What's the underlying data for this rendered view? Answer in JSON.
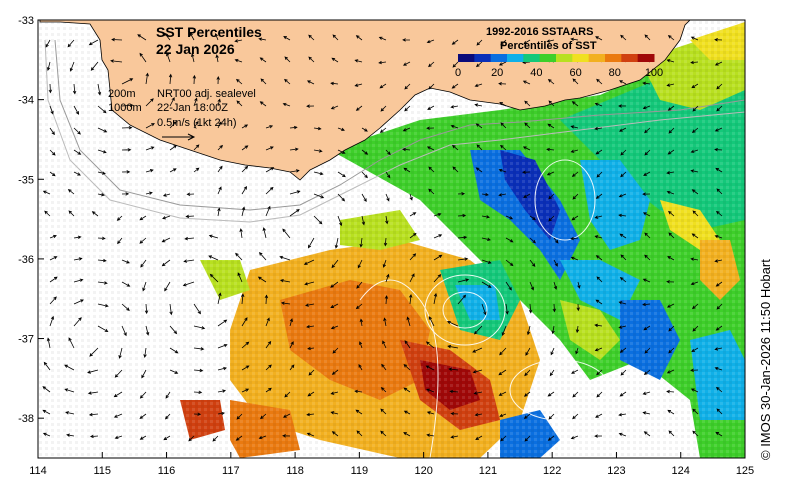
{
  "title": "SST Percentiles",
  "date": "22 Jan 2026",
  "legend": {
    "title1": "1992-2016 SSTAARS",
    "title2": "Percentiles of SST",
    "ticks": [
      "0",
      "20",
      "40",
      "60",
      "80",
      "100"
    ],
    "colors": [
      "#0b0b7a",
      "#0a2fb8",
      "#0a6fe0",
      "#10b0e8",
      "#14c87a",
      "#3ecf2a",
      "#b8e020",
      "#f0e020",
      "#f2b020",
      "#ea7a10",
      "#d04010",
      "#a00808"
    ]
  },
  "contour_info": {
    "line1_depth": "200m",
    "line1_text": "NRT00 adj. sealevel",
    "line2_depth": "1000m",
    "line2_text": "22-Jan 18:00Z",
    "scale_text": "0.5m/s (1kt 24h)"
  },
  "axes": {
    "x_ticks": [
      "114",
      "115",
      "116",
      "117",
      "118",
      "119",
      "120",
      "121",
      "122",
      "123",
      "124",
      "125"
    ],
    "y_ticks": [
      "-33",
      "-34",
      "-35",
      "-36",
      "-37",
      "-38"
    ],
    "lon_range": [
      114,
      125
    ],
    "lat_range": [
      -38.5,
      -33
    ]
  },
  "credit": "© IMOS 30-Jan-2026 11:50 Hobart",
  "colors": {
    "land": "#f9c89b",
    "ocean": "#ffffff",
    "frame": "#000000"
  }
}
